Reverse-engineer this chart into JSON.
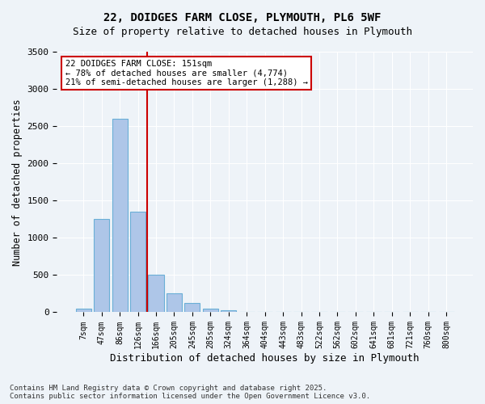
{
  "title_line1": "22, DOIDGES FARM CLOSE, PLYMOUTH, PL6 5WF",
  "title_line2": "Size of property relative to detached houses in Plymouth",
  "xlabel": "Distribution of detached houses by size in Plymouth",
  "ylabel": "Number of detached properties",
  "bar_labels": [
    "7sqm",
    "47sqm",
    "86sqm",
    "126sqm",
    "166sqm",
    "205sqm",
    "245sqm",
    "285sqm",
    "324sqm",
    "364sqm",
    "404sqm",
    "443sqm",
    "483sqm",
    "522sqm",
    "562sqm",
    "602sqm",
    "641sqm",
    "681sqm",
    "721sqm",
    "760sqm",
    "800sqm"
  ],
  "bar_values": [
    50,
    1250,
    2600,
    1350,
    500,
    250,
    120,
    50,
    30,
    10,
    5,
    2,
    1,
    0,
    0,
    0,
    0,
    0,
    0,
    0,
    0
  ],
  "bar_color": "#aec6e8",
  "bar_edge_color": "#6aafd6",
  "vline_x": 3,
  "vline_label": "151sqm",
  "property_size": 151,
  "annotation_text": "22 DOIDGES FARM CLOSE: 151sqm\n← 78% of detached houses are smaller (4,774)\n21% of semi-detached houses are larger (1,288) →",
  "annotation_box_color": "#ffffff",
  "annotation_box_edge_color": "#cc0000",
  "vline_color": "#cc0000",
  "ylim": [
    0,
    3500
  ],
  "yticks": [
    0,
    500,
    1000,
    1500,
    2000,
    2500,
    3000,
    3500
  ],
  "bg_color": "#eef3f8",
  "grid_color": "#ffffff",
  "footer_text": "Contains HM Land Registry data © Crown copyright and database right 2025.\nContains public sector information licensed under the Open Government Licence v3.0.",
  "figsize": [
    6.0,
    5.0
  ],
  "dpi": 100
}
